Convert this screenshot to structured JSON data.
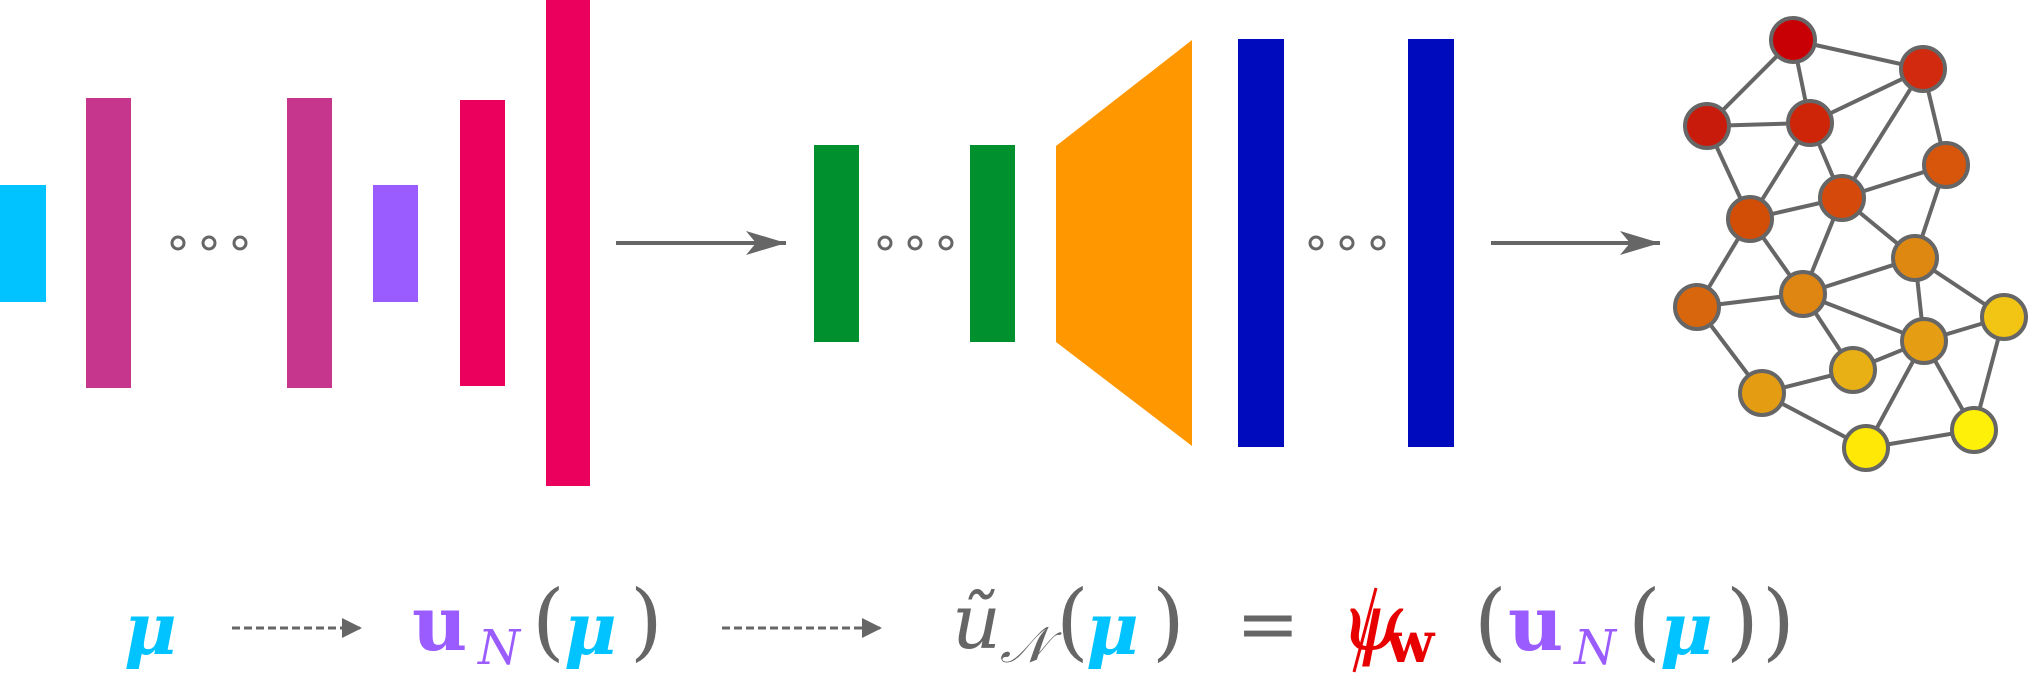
{
  "colors": {
    "input_layer": "#00C3FF",
    "encoder_layer": "#C6368C",
    "latent_layer": "#9B5CFF",
    "expansion_layer": "#EB005E",
    "decoder_layer": "#00912E",
    "trapezoid_block": "#FF9700",
    "output_layer": "#000BBE",
    "arrow": "#666666",
    "ellipsis": "#666666",
    "graph_edge": "#666666",
    "graph_node_stroke": "#666666",
    "psi": "#E80000",
    "formula_gray": "#666666"
  },
  "icons": {
    "ellipsis": "three-open-circles",
    "mesh": "graph-network-icon"
  },
  "formula": {
    "mu": "μ",
    "u": "u",
    "sub_n": "N",
    "open_paren": "(",
    "close_paren": ")",
    "u_tilde": "ũ",
    "sub_cal_n": "𝒩",
    "equals": "=",
    "psi": "ψ",
    "w": "w"
  },
  "graph": {
    "nodes": [
      {
        "id": 0,
        "color": "#C80005"
      },
      {
        "id": 1,
        "color": "#D12A0E"
      },
      {
        "id": 2,
        "color": "#C81B0B"
      },
      {
        "id": 3,
        "color": "#CE2509"
      },
      {
        "id": 4,
        "color": "#D8560B"
      },
      {
        "id": 5,
        "color": "#D54A0A"
      },
      {
        "id": 6,
        "color": "#D24E07"
      },
      {
        "id": 7,
        "color": "#DE8812"
      },
      {
        "id": 8,
        "color": "#D8660C"
      },
      {
        "id": 9,
        "color": "#DF8512"
      },
      {
        "id": 10,
        "color": "#F2C413"
      },
      {
        "id": 11,
        "color": "#E59E13"
      },
      {
        "id": 12,
        "color": "#E9B015"
      },
      {
        "id": 13,
        "color": "#E49D13"
      },
      {
        "id": 14,
        "color": "#FFE805"
      },
      {
        "id": 15,
        "color": "#FFF00A"
      }
    ],
    "edges": [
      [
        0,
        1
      ],
      [
        0,
        2
      ],
      [
        0,
        3
      ],
      [
        2,
        3
      ],
      [
        1,
        3
      ],
      [
        1,
        5
      ],
      [
        1,
        4
      ],
      [
        2,
        6
      ],
      [
        3,
        6
      ],
      [
        3,
        5
      ],
      [
        4,
        5
      ],
      [
        5,
        6
      ],
      [
        5,
        7
      ],
      [
        6,
        8
      ],
      [
        5,
        9
      ],
      [
        4,
        7
      ],
      [
        6,
        9
      ],
      [
        8,
        9
      ],
      [
        7,
        9
      ],
      [
        7,
        10
      ],
      [
        7,
        11
      ],
      [
        9,
        11
      ],
      [
        9,
        12
      ],
      [
        8,
        13
      ],
      [
        13,
        12
      ],
      [
        11,
        12
      ],
      [
        11,
        10
      ],
      [
        11,
        14
      ],
      [
        11,
        15
      ],
      [
        10,
        15
      ],
      [
        14,
        15
      ],
      [
        13,
        14
      ]
    ]
  }
}
